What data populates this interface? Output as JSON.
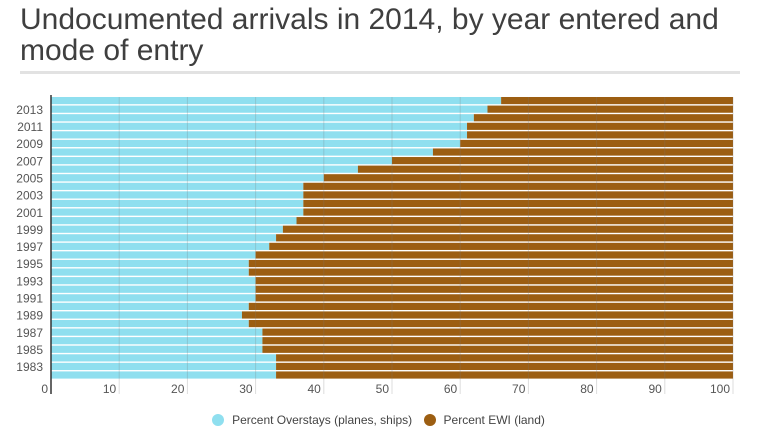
{
  "chart_data": {
    "type": "bar",
    "orientation": "horizontal",
    "stacked": true,
    "title": "Undocumented arrivals in 2014, by year entered and mode of entry",
    "xlabel": "",
    "ylabel": "",
    "xlim": [
      0,
      100
    ],
    "x_ticks": [
      0,
      10,
      20,
      30,
      40,
      50,
      60,
      70,
      80,
      90,
      100
    ],
    "grid": true,
    "legend_position": "bottom-center",
    "categories": [
      "2014",
      "2013",
      "2012",
      "2011",
      "2010",
      "2009",
      "2008",
      "2007",
      "2006",
      "2005",
      "2004",
      "2003",
      "2002",
      "2001",
      "2000",
      "1999",
      "1998",
      "1997",
      "1996",
      "1995",
      "1994",
      "1993",
      "1992",
      "1991",
      "1990",
      "1989",
      "1988",
      "1987",
      "1986",
      "1985",
      "1984",
      "1983",
      "1982"
    ],
    "y_tick_labels": [
      "2013",
      "2011",
      "2009",
      "2007",
      "2005",
      "2003",
      "2001",
      "1999",
      "1997",
      "1995",
      "1993",
      "1991",
      "1989",
      "1987",
      "1985",
      "1983"
    ],
    "series": [
      {
        "name": "Percent Overstays (planes, ships)",
        "color": "#8fdfef",
        "values": [
          66,
          64,
          62,
          61,
          61,
          60,
          56,
          50,
          45,
          40,
          37,
          37,
          37,
          37,
          36,
          34,
          33,
          32,
          30,
          29,
          29,
          30,
          30,
          30,
          29,
          28,
          29,
          31,
          31,
          31,
          33,
          33,
          33
        ]
      },
      {
        "name": "Percent EWI (land)",
        "color": "#9c5e12",
        "values": [
          34,
          36,
          38,
          39,
          39,
          40,
          44,
          50,
          55,
          60,
          63,
          63,
          63,
          63,
          64,
          66,
          67,
          68,
          70,
          71,
          71,
          70,
          70,
          70,
          71,
          72,
          71,
          69,
          69,
          69,
          67,
          67,
          67
        ]
      }
    ]
  }
}
